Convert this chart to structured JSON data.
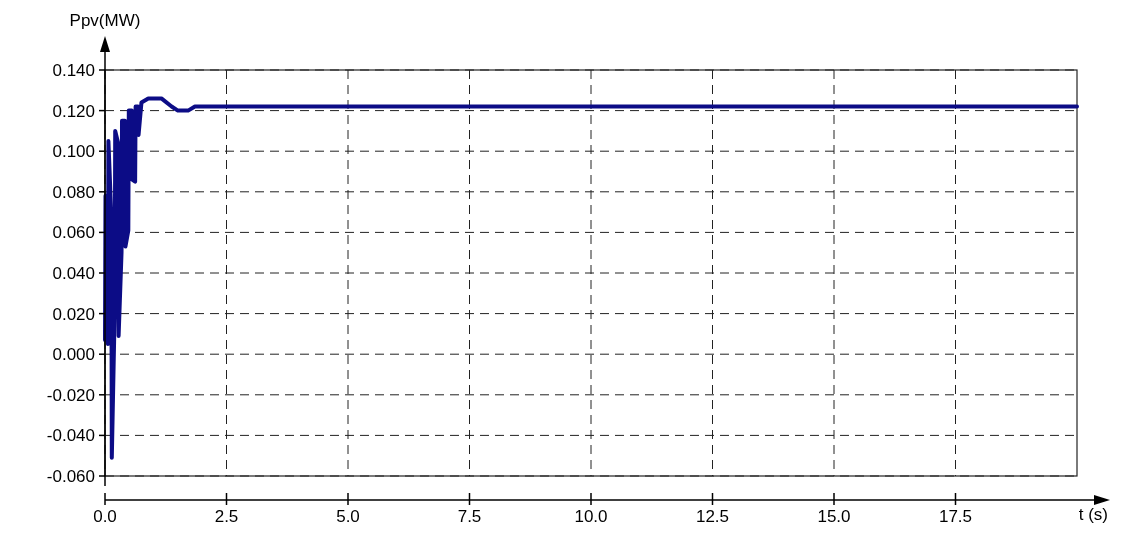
{
  "chart_data": {
    "type": "line",
    "xlabel": "t (s)",
    "ylabel": "Ppv(MW)",
    "xlim": [
      0,
      20
    ],
    "ylim": [
      -0.06,
      0.14
    ],
    "xticks": [
      {
        "value": 0,
        "label": "0.0"
      },
      2.5,
      {
        "value": 5,
        "label": "5.0"
      },
      7.5,
      {
        "value": 10,
        "label": "10.0"
      },
      12.5,
      {
        "value": 15,
        "label": "15.0"
      },
      17.5
    ],
    "yticks": [
      {
        "value": -0.06,
        "label": "-0.060"
      },
      {
        "value": -0.04,
        "label": "-0.040"
      },
      {
        "value": -0.02,
        "label": "-0.020"
      },
      {
        "value": 0,
        "label": "0.000"
      },
      {
        "value": 0.02,
        "label": "0.020"
      },
      {
        "value": 0.04,
        "label": "0.040"
      },
      {
        "value": 0.06,
        "label": "0.060"
      },
      {
        "value": 0.08,
        "label": "0.080"
      },
      {
        "value": 0.1,
        "label": "0.100"
      },
      {
        "value": 0.12,
        "label": "0.120"
      },
      {
        "value": 0.14,
        "label": "0.140"
      }
    ],
    "grid": true,
    "line_style": "solid",
    "marker": "none",
    "series": [
      {
        "color": "#0c0c86",
        "x": [
          0,
          0.01,
          0.03,
          0.06,
          0.07,
          0.13,
          0.14,
          0.2,
          0.21,
          0.27,
          0.28,
          0.34,
          0.35,
          0.41,
          0.42,
          0.48,
          0.49,
          0.55,
          0.56,
          0.62,
          0.63,
          0.68,
          0.69,
          0.75,
          0.89,
          1.16,
          1.37,
          1.5,
          1.71,
          1.85,
          5,
          10,
          15,
          20
        ],
        "values": [
          0.007,
          0.078,
          0.078,
          0.005,
          0.105,
          0.068,
          -0.051,
          0.022,
          0.11,
          0.104,
          0.009,
          0.05,
          0.115,
          0.115,
          0.053,
          0.061,
          0.12,
          0.12,
          0.086,
          0.085,
          0.122,
          0.122,
          0.108,
          0.124,
          0.126,
          0.126,
          0.122,
          0.12,
          0.12,
          0.122,
          0.122,
          0.122,
          0.122,
          0.122
        ]
      }
    ]
  }
}
